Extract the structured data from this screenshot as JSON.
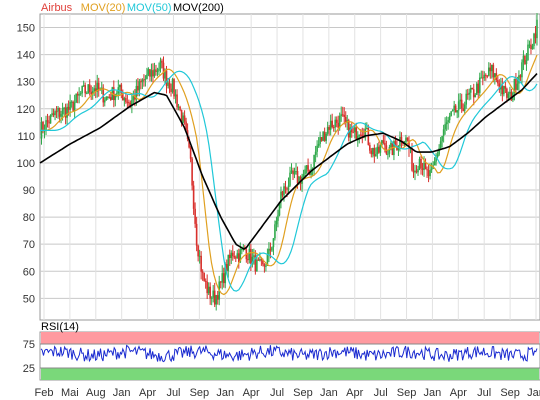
{
  "chart_data": [
    {
      "type": "line",
      "title": "",
      "legend": [
        {
          "name": "Airbus",
          "color": "#e0403a"
        },
        {
          "name": "MOV(20)",
          "color": "#e0a020"
        },
        {
          "name": "MOV(50)",
          "color": "#20c8d8"
        },
        {
          "name": "MOV(200)",
          "color": "#000000"
        }
      ],
      "legend_position": "top-left",
      "grid": true,
      "ylim": [
        42,
        155
      ],
      "yticks": [
        "50",
        "60",
        "70",
        "80",
        "90",
        "100",
        "110",
        "120",
        "130",
        "140",
        "150"
      ],
      "xticks": [
        "Feb",
        "Mai",
        "Aug",
        "Jan",
        "Apr",
        "Jul",
        "Sep",
        "Jan",
        "Apr",
        "Jul",
        "Sep",
        "Jan",
        "Apr",
        "Jul",
        "Sep",
        "Jan",
        "Apr",
        "Jul",
        "Sep",
        "Jan"
      ],
      "price_path": [
        [
          0,
          112
        ],
        [
          5,
          118
        ],
        [
          10,
          120
        ],
        [
          14,
          126
        ],
        [
          18,
          128
        ],
        [
          22,
          124
        ],
        [
          26,
          127
        ],
        [
          30,
          122
        ],
        [
          34,
          130
        ],
        [
          38,
          134
        ],
        [
          40,
          136
        ],
        [
          42,
          131
        ],
        [
          44,
          128
        ],
        [
          46,
          121
        ],
        [
          48,
          113
        ],
        [
          50,
          100
        ],
        [
          52,
          72
        ],
        [
          54,
          58
        ],
        [
          56,
          52
        ],
        [
          58,
          50
        ],
        [
          60,
          55
        ],
        [
          62,
          62
        ],
        [
          64,
          67
        ],
        [
          66,
          66
        ],
        [
          68,
          68
        ],
        [
          70,
          65
        ],
        [
          72,
          62
        ],
        [
          74,
          61
        ],
        [
          76,
          66
        ],
        [
          78,
          75
        ],
        [
          80,
          88
        ],
        [
          82,
          92
        ],
        [
          84,
          95
        ],
        [
          86,
          94
        ],
        [
          88,
          96
        ],
        [
          90,
          98
        ],
        [
          92,
          106
        ],
        [
          94,
          110
        ],
        [
          96,
          114
        ],
        [
          98,
          115
        ],
        [
          100,
          116
        ],
        [
          102,
          113
        ],
        [
          104,
          110
        ],
        [
          106,
          113
        ],
        [
          108,
          112
        ],
        [
          110,
          105
        ],
        [
          112,
          103
        ],
        [
          114,
          108
        ],
        [
          116,
          104
        ],
        [
          118,
          106
        ],
        [
          120,
          110
        ],
        [
          122,
          108
        ],
        [
          124,
          97
        ],
        [
          126,
          102
        ],
        [
          128,
          96
        ],
        [
          130,
          95
        ],
        [
          132,
          104
        ],
        [
          134,
          112
        ],
        [
          136,
          116
        ],
        [
          138,
          119
        ],
        [
          140,
          121
        ],
        [
          142,
          124
        ],
        [
          144,
          126
        ],
        [
          146,
          129
        ],
        [
          148,
          132
        ],
        [
          150,
          134
        ],
        [
          152,
          130
        ],
        [
          154,
          126
        ],
        [
          156,
          124
        ],
        [
          158,
          130
        ],
        [
          160,
          136
        ],
        [
          162,
          141
        ],
        [
          164,
          147
        ],
        [
          165,
          151
        ]
      ],
      "series": [
        {
          "name": "Airbus",
          "color": "#e0403a",
          "lag": 0,
          "smooth": 0
        },
        {
          "name": "MOV(20)",
          "color": "#e0a020",
          "lag": 2,
          "smooth": 1
        },
        {
          "name": "MOV(50)",
          "color": "#20c8d8",
          "lag": 5,
          "smooth": 2
        },
        {
          "name": "MOV(200)",
          "color": "#000000",
          "points": [
            [
              0,
              100
            ],
            [
              10,
              107
            ],
            [
              20,
              113
            ],
            [
              30,
              121
            ],
            [
              38,
              126
            ],
            [
              42,
              125
            ],
            [
              48,
              113
            ],
            [
              54,
              95
            ],
            [
              60,
              80
            ],
            [
              65,
              70
            ],
            [
              68,
              68
            ],
            [
              72,
              74
            ],
            [
              80,
              86
            ],
            [
              90,
              97
            ],
            [
              96,
              102
            ],
            [
              102,
              107
            ],
            [
              108,
              110
            ],
            [
              114,
              111
            ],
            [
              120,
              108
            ],
            [
              125,
              104
            ],
            [
              130,
              104
            ],
            [
              136,
              106
            ],
            [
              142,
              111
            ],
            [
              148,
              117
            ],
            [
              154,
              122
            ],
            [
              160,
              127
            ],
            [
              165,
              133
            ]
          ]
        }
      ]
    },
    {
      "type": "line",
      "title": "RSI(14)",
      "ylim": [
        0,
        100
      ],
      "yticks": [
        "25",
        "75"
      ],
      "bands": [
        {
          "from": 75,
          "to": 100,
          "color": "#ff9aa0"
        },
        {
          "from": 0,
          "to": 25,
          "color": "#7ad87a"
        }
      ],
      "series": [
        {
          "name": "RSI(14)",
          "color": "#1a2ad0",
          "mean": 55,
          "amplitude": 14
        }
      ]
    }
  ]
}
